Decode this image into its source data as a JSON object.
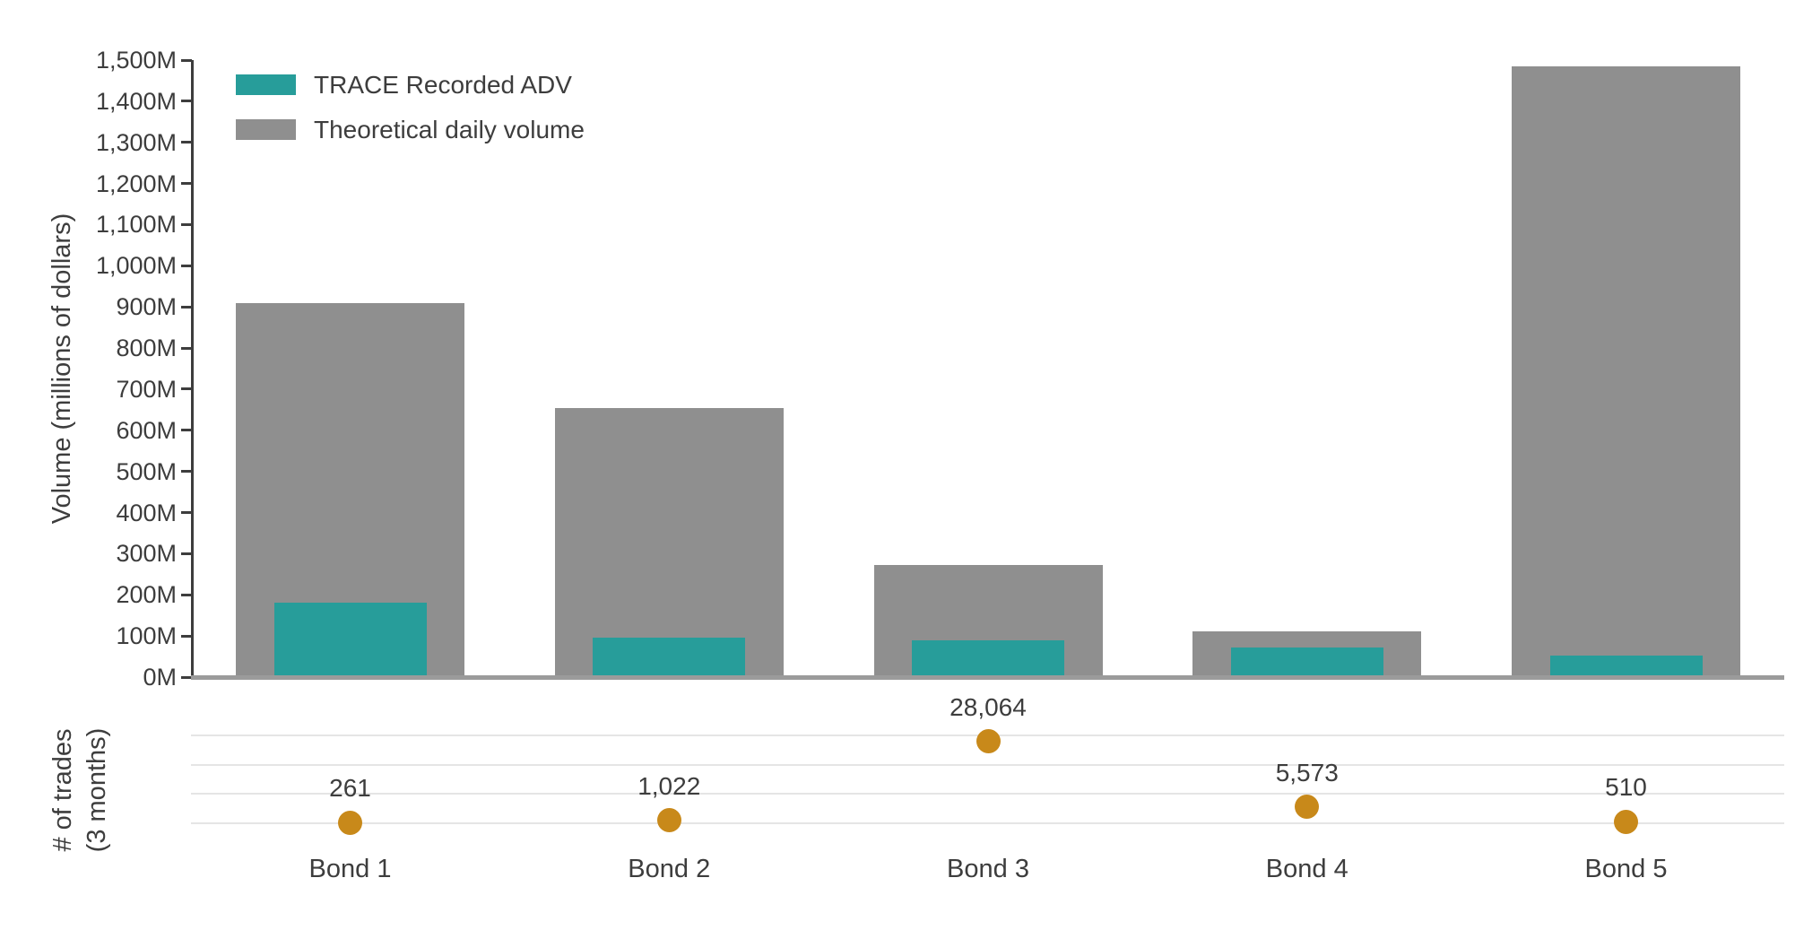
{
  "chart_data": {
    "type": "bar",
    "categories": [
      "Bond 1",
      "Bond 2",
      "Bond 3",
      "Bond 4",
      "Bond 5"
    ],
    "series": [
      {
        "name": "TRACE Recorded ADV",
        "color": "#279D9A",
        "values": [
          180,
          95,
          90,
          72,
          52
        ]
      },
      {
        "name": "Theoretical daily volume",
        "color": "#8F8F8F",
        "values": [
          910,
          655,
          272,
          112,
          1485
        ]
      }
    ],
    "ylabel": "Volume (millions of dollars)",
    "ylim": [
      0,
      1500
    ],
    "ytick_labels": [
      "0M",
      "100M",
      "200M",
      "300M",
      "400M",
      "500M",
      "600M",
      "700M",
      "800M",
      "900M",
      "1,000M",
      "1,100M",
      "1,200M",
      "1,300M",
      "1,400M",
      "1,500M"
    ],
    "trades": {
      "type": "scatter",
      "title_line1": "# of trades",
      "title_line2": "(3 months)",
      "color": "#C8891A",
      "values": [
        261,
        1022,
        28064,
        5573,
        510
      ],
      "labels": [
        "261",
        "1,022",
        "28,064",
        "5,573",
        "510"
      ],
      "axis_max": 30000,
      "gridline_count": 4
    },
    "legend_position": "top-left",
    "grid": "off"
  },
  "legend": {
    "items": [
      {
        "label": "TRACE Recorded ADV",
        "color": "#279D9A"
      },
      {
        "label": "Theoretical daily volume",
        "color": "#8F8F8F"
      }
    ]
  }
}
